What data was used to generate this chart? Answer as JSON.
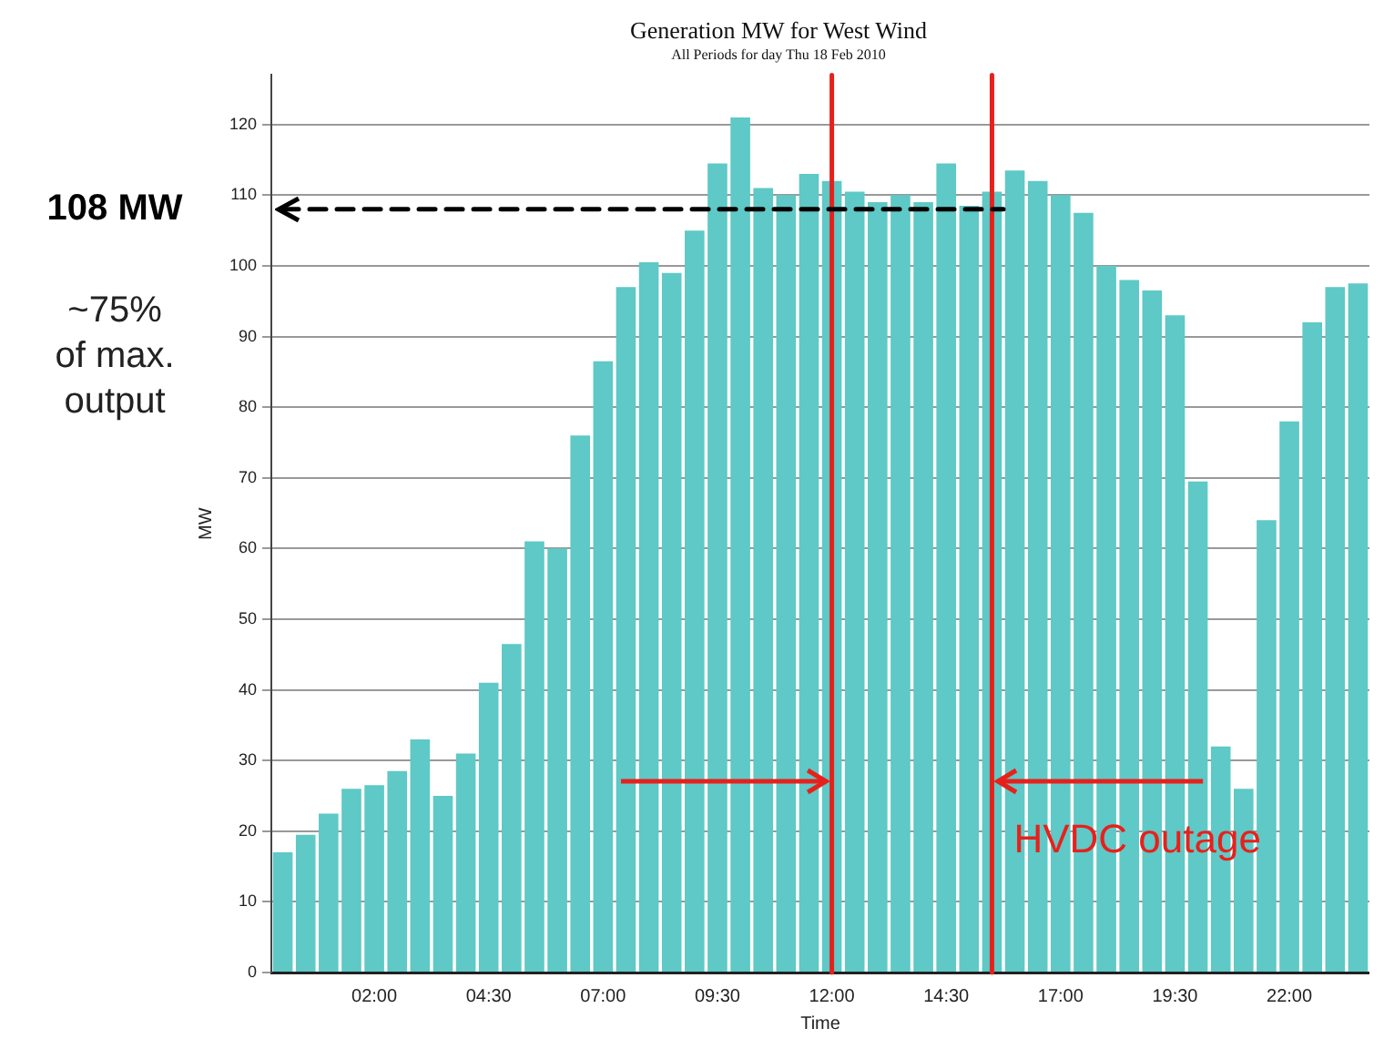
{
  "chart_data": {
    "type": "bar",
    "title": "Generation MW for West Wind",
    "subtitle": "All Periods for day Thu 18 Feb 2010",
    "xlabel": "Time",
    "ylabel": "MW",
    "x": [
      0,
      0.5,
      1,
      1.5,
      2,
      2.5,
      3,
      3.5,
      4,
      4.5,
      5,
      5.5,
      6,
      6.5,
      7,
      7.5,
      8,
      8.5,
      9,
      9.5,
      10,
      10.5,
      11,
      11.5,
      12,
      12.5,
      13,
      13.5,
      14,
      14.5,
      15,
      15.5,
      16,
      16.5,
      17,
      17.5,
      18,
      18.5,
      19,
      19.5,
      20,
      20.5,
      21,
      21.5,
      22,
      22.5,
      23,
      23.5
    ],
    "values": [
      17,
      19.5,
      22.5,
      26,
      26.5,
      28.5,
      33,
      25,
      31,
      41,
      46.5,
      61,
      60,
      76,
      86.5,
      97,
      100.5,
      99,
      105,
      114.5,
      121,
      111,
      110,
      113,
      112,
      110.5,
      109,
      110,
      109,
      114.5,
      108.5,
      110.5,
      113.5,
      112,
      110,
      107.5,
      100,
      98,
      96.5,
      93,
      69.5,
      32,
      26,
      64,
      78,
      92,
      97,
      97.5
    ],
    "color": "#5ec9c6",
    "xlim": [
      -0.25,
      23.75
    ],
    "xticks": [
      {
        "value": 2,
        "label": "02:00"
      },
      {
        "value": 4.5,
        "label": "04:30"
      },
      {
        "value": 7,
        "label": "07:00"
      },
      {
        "value": 9.5,
        "label": "09:30"
      },
      {
        "value": 12,
        "label": "12:00"
      },
      {
        "value": 14.5,
        "label": "14:30"
      },
      {
        "value": 17,
        "label": "17:00"
      },
      {
        "value": 19.5,
        "label": "19:30"
      },
      {
        "value": 22,
        "label": "22:00"
      }
    ],
    "ylim": [
      0,
      127
    ],
    "yticks": [
      0,
      10,
      20,
      30,
      40,
      50,
      60,
      70,
      80,
      90,
      100,
      110,
      120
    ],
    "grid": "y",
    "legend": false,
    "ref_lines": [
      {
        "axis": "x",
        "value": 12,
        "color": "#e8201c"
      },
      {
        "axis": "x",
        "value": 15.5,
        "color": "#e8201c"
      },
      {
        "axis": "y",
        "value": 108,
        "label": "108 MW",
        "color": "#000000",
        "line_style": "dashed"
      }
    ],
    "annotations": [
      "~75% of max. output",
      "HVDC outage"
    ]
  }
}
